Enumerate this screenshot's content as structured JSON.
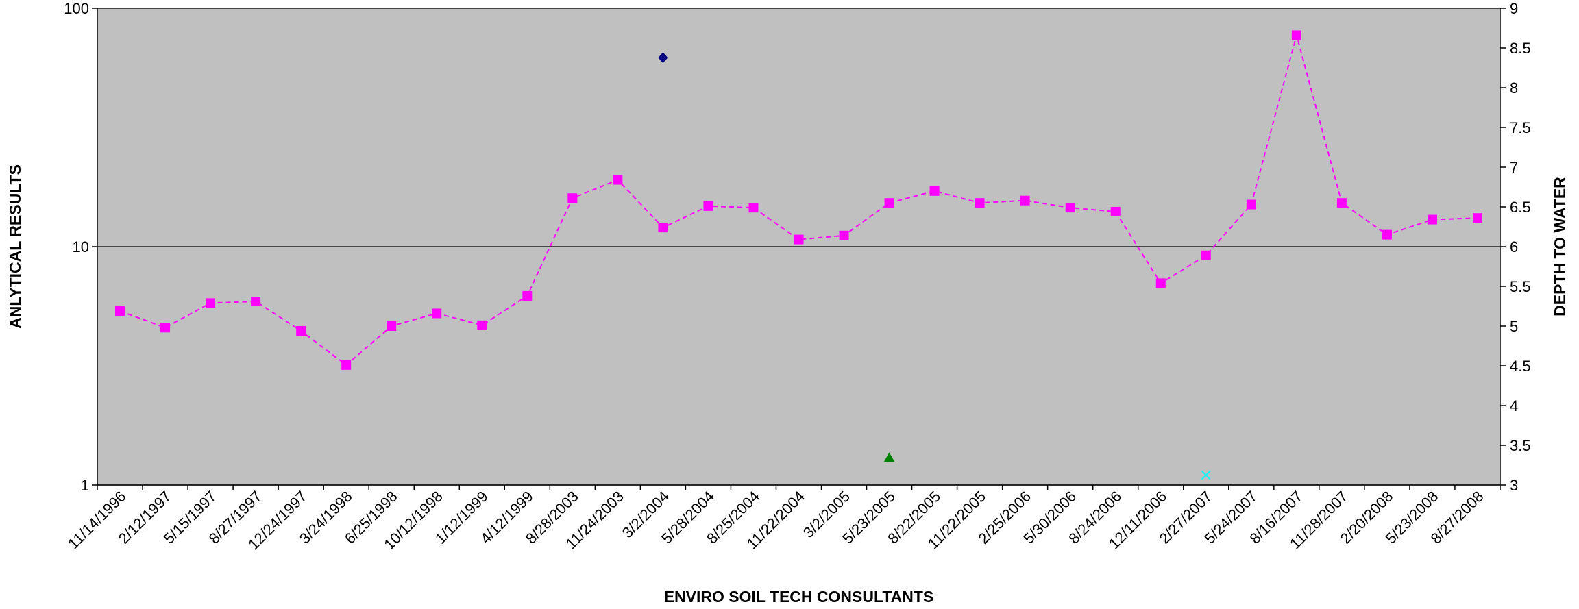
{
  "chart_data": {
    "type": "line",
    "title": "",
    "xlabel": "ENVIRO SOIL TECH CONSULTANTS",
    "ylabel": "ANLYTICAL RESULTS",
    "y2label": "DEPTH TO WATER",
    "y_scale": "log",
    "ylim": [
      1,
      100
    ],
    "y_ticks": [
      "1",
      "10",
      "100"
    ],
    "y2lim": [
      3,
      9
    ],
    "y2_ticks": [
      "3",
      "3.5",
      "4",
      "4.5",
      "5",
      "5.5",
      "6",
      "6.5",
      "7",
      "7.5",
      "8",
      "8.5",
      "9"
    ],
    "grid": "major-y",
    "legend": "none",
    "categories": [
      "11/14/1996",
      "2/12/1997",
      "5/15/1997",
      "8/27/1997",
      "12/24/1997",
      "3/24/1998",
      "6/25/1998",
      "10/12/1998",
      "1/12/1999",
      "4/12/1999",
      "8/28/2003",
      "11/24/2003",
      "3/2/2004",
      "5/28/2004",
      "8/25/2004",
      "11/22/2004",
      "3/2/2005",
      "5/23/2005",
      "8/22/2005",
      "11/22/2005",
      "2/25/2006",
      "5/30/2006",
      "8/24/2006",
      "12/11/2006",
      "2/27/2007",
      "5/24/2007",
      "8/16/2007",
      "11/28/2007",
      "2/20/2008",
      "5/23/2008",
      "8/27/2008"
    ],
    "series": [
      {
        "axis": "right",
        "color": "#ff00ff",
        "line_style": "dashed",
        "marker": "square",
        "values": [
          5.19,
          4.98,
          5.29,
          5.31,
          4.94,
          4.51,
          5.0,
          5.16,
          5.01,
          5.38,
          6.61,
          6.84,
          6.24,
          6.51,
          6.49,
          6.09,
          6.14,
          6.55,
          6.7,
          6.55,
          6.58,
          6.49,
          6.44,
          5.54,
          5.89,
          6.53,
          8.66,
          6.55,
          6.15,
          6.34,
          6.36
        ]
      },
      {
        "axis": "left",
        "color": "#000080",
        "marker": "diamond",
        "points": [
          {
            "x": "3/2/2004",
            "y": 62
          }
        ]
      },
      {
        "axis": "left",
        "color": "#008000",
        "marker": "triangle",
        "points": [
          {
            "x": "5/23/2005",
            "y": 1.3
          }
        ]
      },
      {
        "axis": "left",
        "color": "#00ffff",
        "marker": "x",
        "points": [
          {
            "x": "2/27/2007",
            "y": 1.1
          }
        ]
      }
    ]
  },
  "colors": {
    "plot_background": "#c0c0c0",
    "gridline": "#000000",
    "axis": "#000000"
  }
}
